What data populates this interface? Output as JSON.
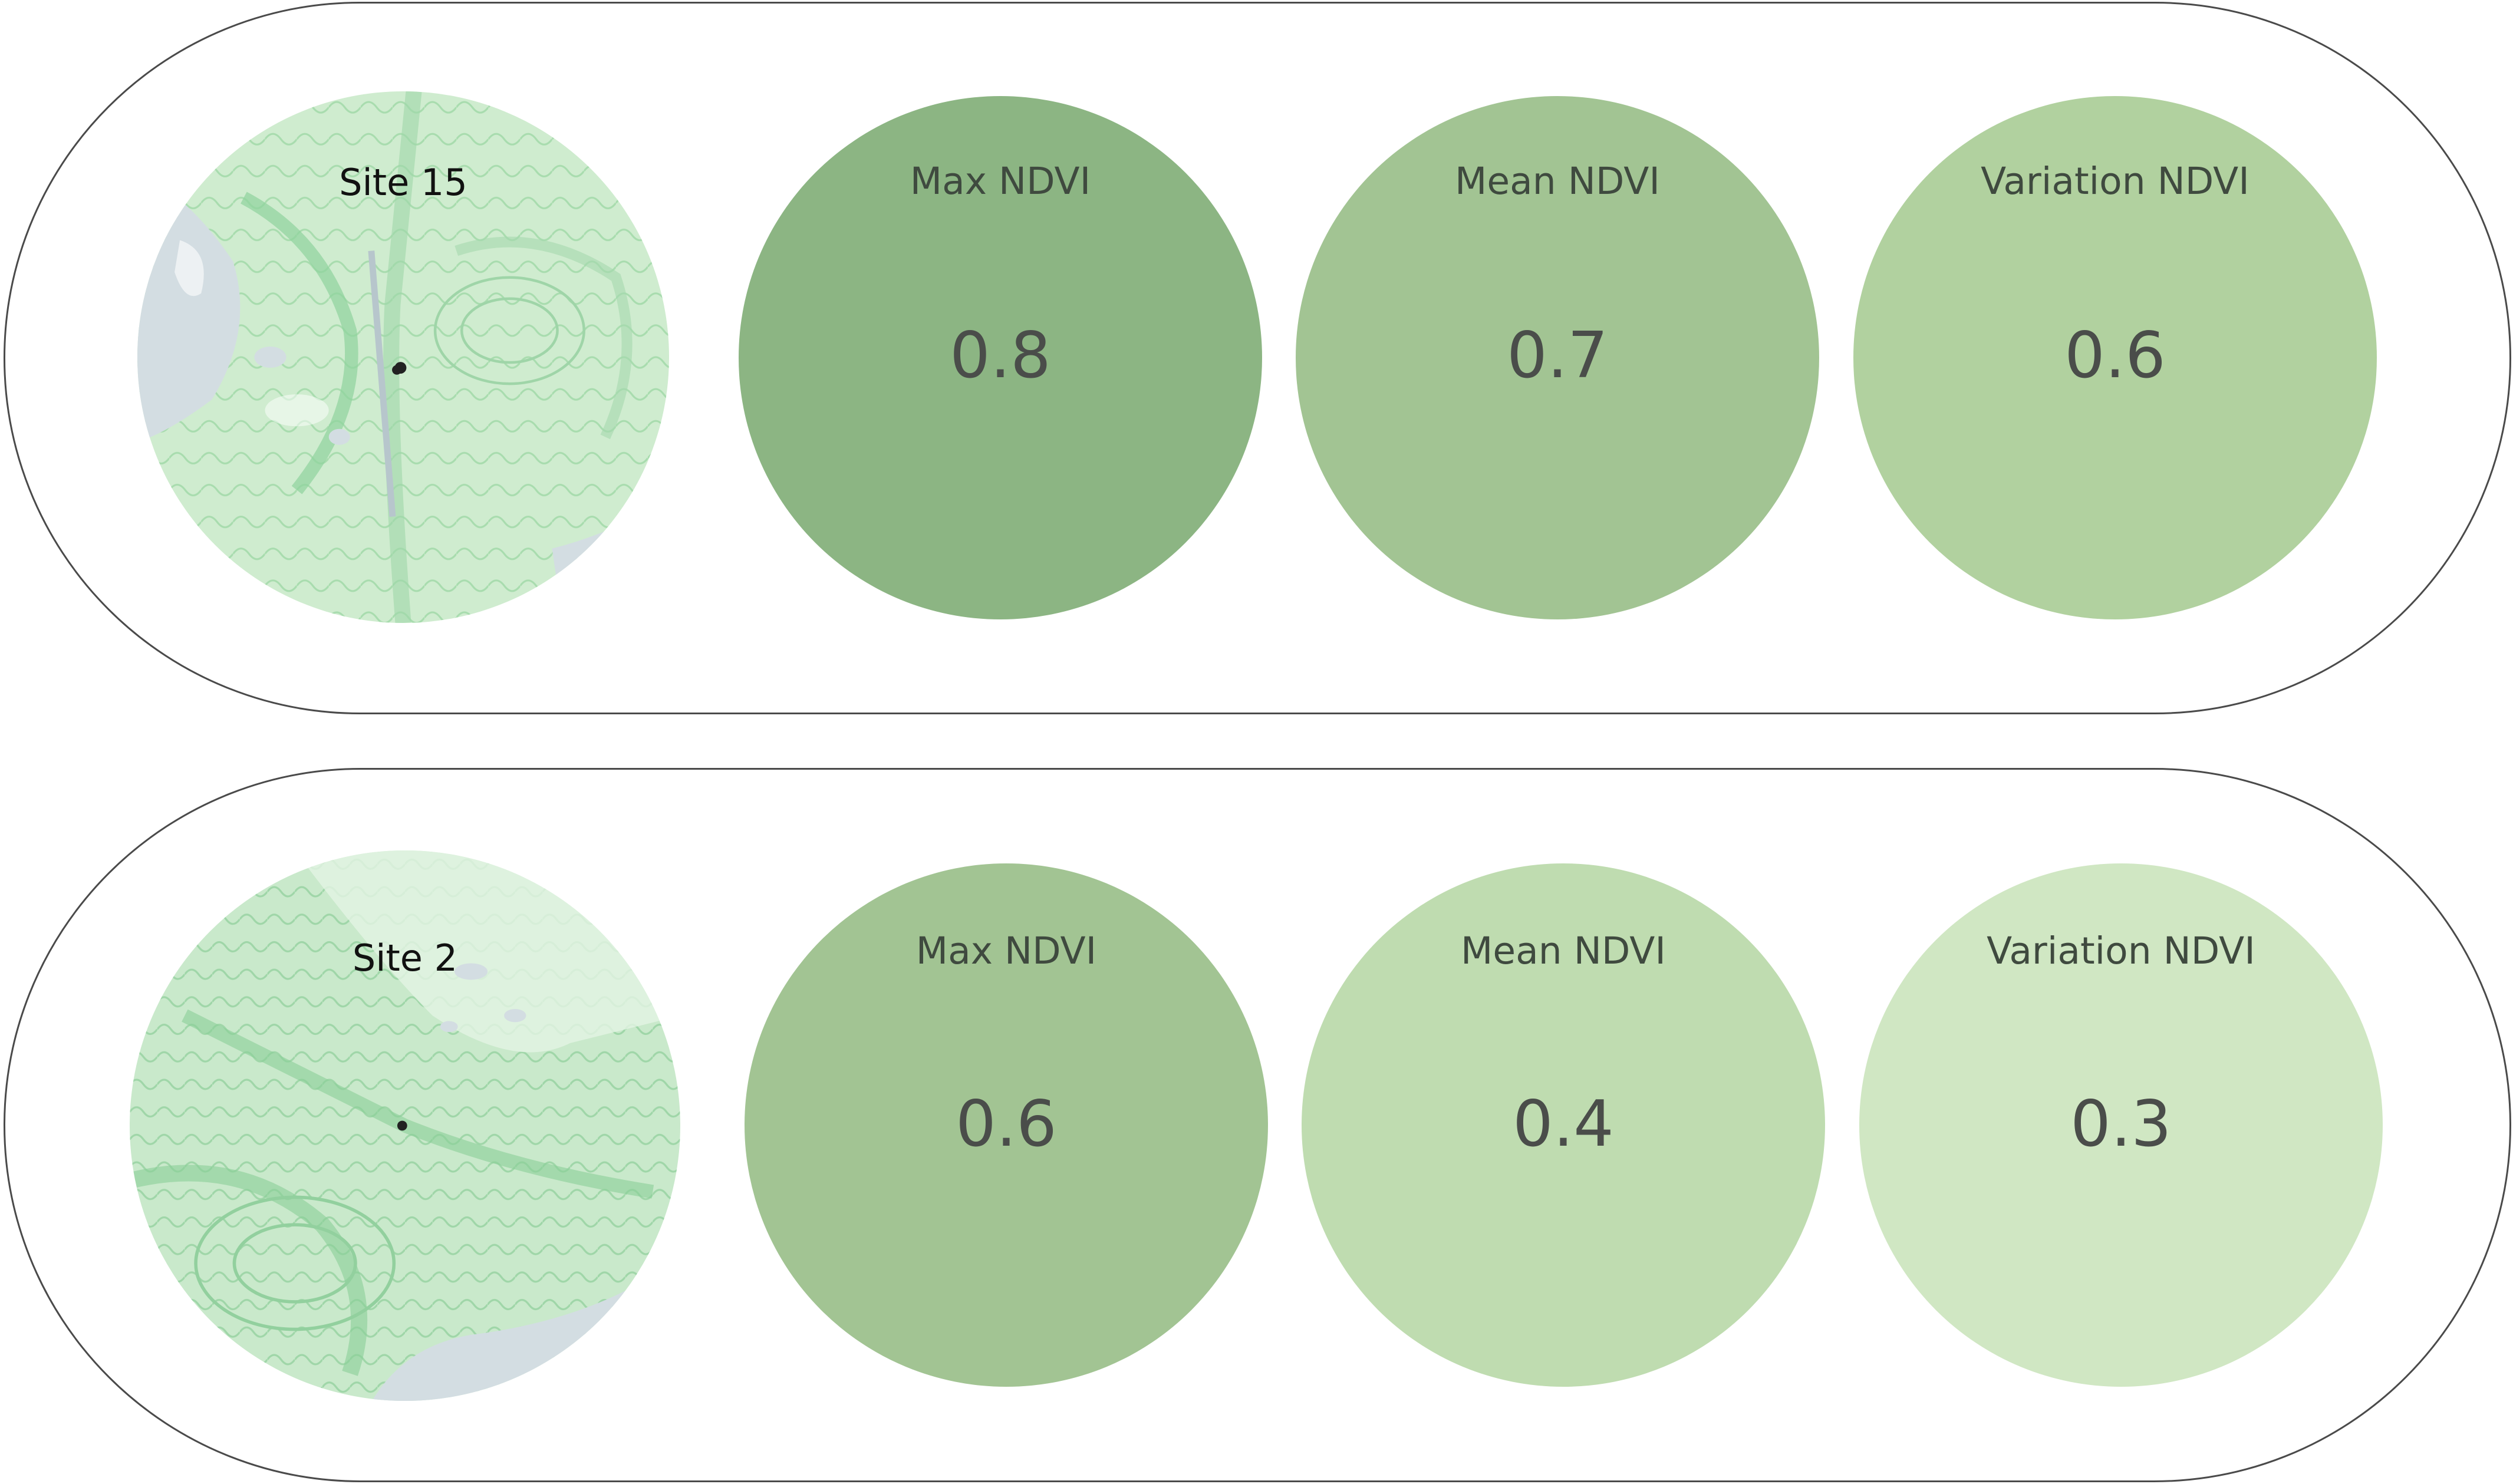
{
  "panels": [
    {
      "site": "Site 15",
      "metrics": [
        {
          "label": "Max NDVI",
          "value": "0.8",
          "color": "#8cb583"
        },
        {
          "label": "Mean NDVI",
          "value": "0.7",
          "color": "#a2c493"
        },
        {
          "label": "Variation NDVI",
          "value": "0.6",
          "color": "#b1d19f"
        }
      ]
    },
    {
      "site": "Site 2",
      "metrics": [
        {
          "label": "Max NDVI",
          "value": "0.6",
          "color": "#a2c493"
        },
        {
          "label": "Mean NDVI",
          "value": "0.4",
          "color": "#bfdcb0"
        },
        {
          "label": "Variation NDVI",
          "value": "0.3",
          "color": "#d0e7c3"
        }
      ]
    }
  ],
  "map_colors": {
    "land": "#cdebcf",
    "vegetation": "#8fd39c",
    "water": "#d3dde2",
    "marker": "#222222"
  }
}
